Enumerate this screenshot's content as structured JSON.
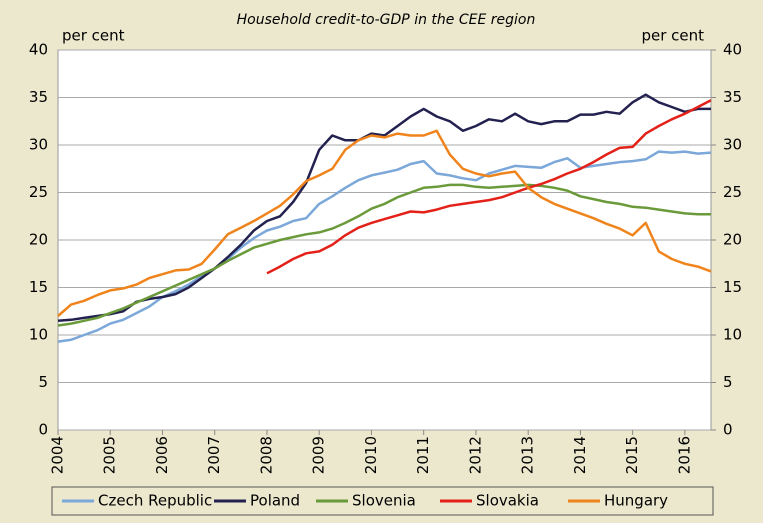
{
  "chart_data": {
    "type": "line",
    "title": "Household credit-to-GDP in the CEE region",
    "y_label": "per cent",
    "y2_label": "per cent",
    "x": [
      2004,
      2004.25,
      2004.5,
      2004.75,
      2005,
      2005.25,
      2005.5,
      2005.75,
      2006,
      2006.25,
      2006.5,
      2006.75,
      2007,
      2007.25,
      2007.5,
      2007.75,
      2008,
      2008.25,
      2008.5,
      2008.75,
      2009,
      2009.25,
      2009.5,
      2009.75,
      2010,
      2010.25,
      2010.5,
      2010.75,
      2011,
      2011.25,
      2011.5,
      2011.75,
      2012,
      2012.25,
      2012.5,
      2012.75,
      2013,
      2013.25,
      2013.5,
      2013.75,
      2014,
      2014.25,
      2014.5,
      2014.75,
      2015,
      2015.25,
      2015.5,
      2015.75,
      2016,
      2016.25,
      2016.5
    ],
    "series": [
      {
        "name": "Czech Republic",
        "color": "#7ba7d9",
        "values": [
          9.3,
          9.5,
          10.0,
          10.5,
          11.2,
          11.6,
          12.3,
          13.0,
          14.0,
          14.6,
          15.3,
          16.2,
          17.0,
          18.0,
          19.2,
          20.2,
          21.0,
          21.4,
          22.0,
          22.3,
          23.8,
          24.6,
          25.5,
          26.3,
          26.8,
          27.1,
          27.4,
          28.0,
          28.3,
          27.0,
          26.8,
          26.5,
          26.3,
          27.0,
          27.4,
          27.8,
          27.7,
          27.6,
          28.2,
          28.6,
          27.6,
          27.8,
          28.0,
          28.2,
          28.3,
          28.5,
          29.3,
          29.2,
          29.3,
          29.1,
          29.2
        ]
      },
      {
        "name": "Poland",
        "color": "#23214f",
        "values": [
          11.5,
          11.6,
          11.8,
          12.0,
          12.2,
          12.5,
          13.5,
          13.8,
          14.0,
          14.3,
          15.0,
          16.0,
          17.0,
          18.2,
          19.5,
          21.0,
          22.0,
          22.5,
          24.0,
          26.0,
          29.5,
          31.0,
          30.5,
          30.5,
          31.2,
          31.0,
          32.0,
          33.0,
          33.8,
          33.0,
          32.5,
          31.5,
          32.0,
          32.7,
          32.5,
          33.3,
          32.5,
          32.2,
          32.5,
          32.5,
          33.2,
          33.2,
          33.5,
          33.3,
          34.5,
          35.3,
          34.5,
          34.0,
          33.5,
          33.8,
          33.8
        ]
      },
      {
        "name": "Slovenia",
        "color": "#6a9a3a",
        "values": [
          11.0,
          11.2,
          11.5,
          11.8,
          12.3,
          12.8,
          13.4,
          14.0,
          14.6,
          15.2,
          15.8,
          16.4,
          17.0,
          17.8,
          18.5,
          19.2,
          19.6,
          20.0,
          20.3,
          20.6,
          20.8,
          21.2,
          21.8,
          22.5,
          23.3,
          23.8,
          24.5,
          25.0,
          25.5,
          25.6,
          25.8,
          25.8,
          25.6,
          25.5,
          25.6,
          25.7,
          25.8,
          25.7,
          25.5,
          25.2,
          24.6,
          24.3,
          24.0,
          23.8,
          23.5,
          23.4,
          23.2,
          23.0,
          22.8,
          22.7,
          22.7
        ]
      },
      {
        "name": "Slovakia",
        "color": "#e32119",
        "values": [
          null,
          null,
          null,
          null,
          null,
          null,
          null,
          null,
          null,
          null,
          null,
          null,
          null,
          null,
          null,
          null,
          16.5,
          17.2,
          18.0,
          18.6,
          18.8,
          19.5,
          20.5,
          21.3,
          21.8,
          22.2,
          22.6,
          23.0,
          22.9,
          23.2,
          23.6,
          23.8,
          24.0,
          24.2,
          24.5,
          25.0,
          25.5,
          25.9,
          26.4,
          27.0,
          27.5,
          28.2,
          29.0,
          29.7,
          29.8,
          31.2,
          32.0,
          32.7,
          33.3,
          34.0,
          34.7
        ]
      },
      {
        "name": "Hungary",
        "color": "#f0841c",
        "values": [
          12.0,
          13.2,
          13.6,
          14.2,
          14.7,
          14.9,
          15.3,
          16.0,
          16.4,
          16.8,
          16.9,
          17.5,
          19.0,
          20.6,
          21.3,
          22.0,
          22.8,
          23.6,
          24.8,
          26.2,
          26.8,
          27.5,
          29.5,
          30.5,
          31.0,
          30.8,
          31.2,
          31.0,
          31.0,
          31.5,
          29.0,
          27.5,
          27.0,
          26.7,
          27.0,
          27.2,
          25.5,
          24.5,
          23.8,
          23.3,
          22.8,
          22.3,
          21.7,
          21.2,
          20.5,
          21.8,
          18.8,
          18.0,
          17.5,
          17.2,
          16.7
        ]
      }
    ],
    "xlim": [
      2004,
      2016.5
    ],
    "xticks": [
      2004,
      2005,
      2006,
      2007,
      2008,
      2009,
      2010,
      2011,
      2012,
      2013,
      2014,
      2015,
      2016
    ],
    "ylim": [
      0,
      40
    ],
    "yticks": [
      0,
      5,
      10,
      15,
      20,
      25,
      30,
      35,
      40
    ],
    "y2lim": [
      0,
      40
    ],
    "y2ticks": [
      0,
      5,
      10,
      15,
      20,
      25,
      30,
      35,
      40
    ],
    "grid": true,
    "legend": "bottom"
  }
}
